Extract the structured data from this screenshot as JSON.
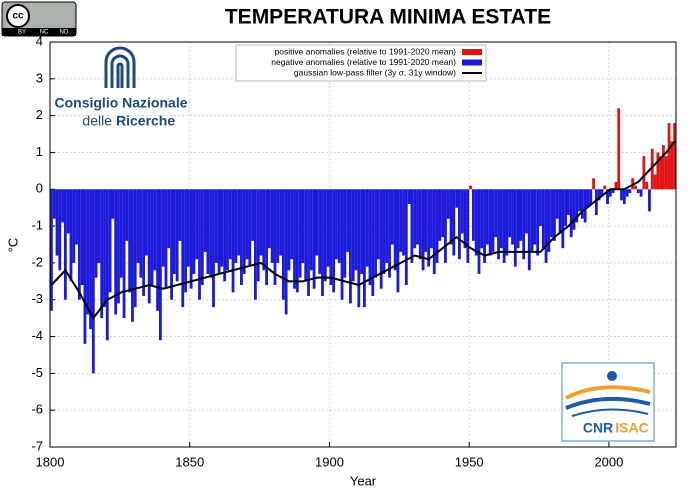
{
  "chart_data": {
    "type": "bar",
    "title": "TEMPERATURA MINIMA ESTATE",
    "xlabel": "Year",
    "ylabel": "°C",
    "xlim": [
      1800,
      2024
    ],
    "ylim": [
      -7,
      4
    ],
    "xticks": [
      1800,
      1850,
      1900,
      1950,
      2000
    ],
    "yticks": [
      -7,
      -6,
      -5,
      -4,
      -3,
      -2,
      -1,
      0,
      1,
      2,
      3,
      4
    ],
    "grid": true,
    "legend": "top-right",
    "series": [
      {
        "name": "positive anomalies (relative to 1991-2020 mean)",
        "color": "#e01414",
        "sign": "positive"
      },
      {
        "name": "negative anomalies (relative to 1991-2020 mean)",
        "color": "#1a1ad8",
        "sign": "negative"
      }
    ],
    "x": [
      1800,
      1801,
      1802,
      1803,
      1804,
      1805,
      1806,
      1807,
      1808,
      1809,
      1810,
      1811,
      1812,
      1813,
      1814,
      1815,
      1816,
      1817,
      1818,
      1819,
      1820,
      1821,
      1822,
      1823,
      1824,
      1825,
      1826,
      1827,
      1828,
      1829,
      1830,
      1831,
      1832,
      1833,
      1834,
      1835,
      1836,
      1837,
      1838,
      1839,
      1840,
      1841,
      1842,
      1843,
      1844,
      1845,
      1846,
      1847,
      1848,
      1849,
      1850,
      1851,
      1852,
      1853,
      1854,
      1855,
      1856,
      1857,
      1858,
      1859,
      1860,
      1861,
      1862,
      1863,
      1864,
      1865,
      1866,
      1867,
      1868,
      1869,
      1870,
      1871,
      1872,
      1873,
      1874,
      1875,
      1876,
      1877,
      1878,
      1879,
      1880,
      1881,
      1882,
      1883,
      1884,
      1885,
      1886,
      1887,
      1888,
      1889,
      1890,
      1891,
      1892,
      1893,
      1894,
      1895,
      1896,
      1897,
      1898,
      1899,
      1900,
      1901,
      1902,
      1903,
      1904,
      1905,
      1906,
      1907,
      1908,
      1909,
      1910,
      1911,
      1912,
      1913,
      1914,
      1915,
      1916,
      1917,
      1918,
      1919,
      1920,
      1921,
      1922,
      1923,
      1924,
      1925,
      1926,
      1927,
      1928,
      1929,
      1930,
      1931,
      1932,
      1933,
      1934,
      1935,
      1936,
      1937,
      1938,
      1939,
      1940,
      1941,
      1942,
      1943,
      1944,
      1945,
      1946,
      1947,
      1948,
      1949,
      1950,
      1951,
      1952,
      1953,
      1954,
      1955,
      1956,
      1957,
      1958,
      1959,
      1960,
      1961,
      1962,
      1963,
      1964,
      1965,
      1966,
      1967,
      1968,
      1969,
      1970,
      1971,
      1972,
      1973,
      1974,
      1975,
      1976,
      1977,
      1978,
      1979,
      1980,
      1981,
      1982,
      1983,
      1984,
      1985,
      1986,
      1987,
      1988,
      1989,
      1990,
      1991,
      1992,
      1993,
      1994,
      1995,
      1996,
      1997,
      1998,
      1999,
      2000,
      2001,
      2002,
      2003,
      2004,
      2005,
      2006,
      2007,
      2008,
      2009,
      2010,
      2011,
      2012,
      2013,
      2014,
      2015,
      2016,
      2017,
      2018,
      2019,
      2020,
      2021,
      2022,
      2023
    ],
    "values": [
      -3.3,
      -0.8,
      -1.8,
      -2.2,
      -0.9,
      -3.0,
      -1.2,
      -2.5,
      -2.0,
      -1.5,
      -3.0,
      -2.6,
      -4.2,
      -3.4,
      -3.8,
      -5.0,
      -2.4,
      -2.0,
      -3.5,
      -3.2,
      -4.1,
      -2.8,
      -0.8,
      -3.4,
      -3.1,
      -2.4,
      -3.5,
      -1.4,
      -2.8,
      -3.6,
      -3.2,
      -2.0,
      -2.4,
      -2.9,
      -1.8,
      -3.1,
      -2.6,
      -2.2,
      -3.3,
      -4.1,
      -2.1,
      -2.7,
      -1.6,
      -3.0,
      -2.3,
      -2.5,
      -1.4,
      -3.2,
      -2.8,
      -2.1,
      -2.7,
      -2.3,
      -1.9,
      -3.0,
      -2.6,
      -1.7,
      -2.3,
      -2.4,
      -3.2,
      -2.0,
      -2.3,
      -2.1,
      -2.5,
      -2.2,
      -1.9,
      -2.8,
      -2.0,
      -1.8,
      -2.6,
      -2.3,
      -1.9,
      -2.1,
      -1.4,
      -3.0,
      -2.5,
      -1.8,
      -2.2,
      -2.6,
      -1.6,
      -2.0,
      -2.6,
      -2.0,
      -1.8,
      -3.0,
      -3.4,
      -2.2,
      -1.9,
      -2.7,
      -2.8,
      -2.4,
      -2.0,
      -2.5,
      -2.9,
      -2.2,
      -2.7,
      -1.8,
      -2.3,
      -2.9,
      -2.5,
      -2.1,
      -2.6,
      -2.8,
      -1.9,
      -2.0,
      -3.0,
      -2.4,
      -1.7,
      -3.1,
      -2.5,
      -2.2,
      -3.2,
      -2.3,
      -3.2,
      -2.1,
      -2.6,
      -2.9,
      -2.4,
      -1.9,
      -2.7,
      -2.3,
      -2.0,
      -2.4,
      -1.5,
      -2.2,
      -2.8,
      -1.7,
      -1.8,
      -2.6,
      -0.4,
      -2.0,
      -1.6,
      -1.5,
      -1.9,
      -2.2,
      -1.7,
      -2.1,
      -1.6,
      -2.3,
      -2.0,
      -1.4,
      -1.3,
      -2.0,
      -0.8,
      -1.5,
      -1.8,
      -0.5,
      -1.9,
      -1.2,
      -1.6,
      -2.0,
      0.1,
      -1.4,
      -1.8,
      -2.3,
      -1.6,
      -2.0,
      -1.5,
      -1.8,
      -1.7,
      -1.3,
      -1.9,
      -1.6,
      -2.0,
      -1.8,
      -1.3,
      -1.5,
      -2.1,
      -1.6,
      -1.4,
      -1.9,
      -1.2,
      -2.2,
      -1.7,
      -1.5,
      -1.8,
      -1.0,
      -1.6,
      -2.0,
      -1.7,
      -1.3,
      -1.4,
      -0.8,
      -1.2,
      -1.6,
      -1.0,
      -0.7,
      -1.3,
      -1.1,
      -0.9,
      -0.6,
      -0.8,
      -0.9,
      -0.5,
      -0.4,
      0.3,
      -0.7,
      -0.3,
      -0.2,
      0.1,
      -0.4,
      -0.2,
      -0.1,
      0.2,
      2.2,
      -0.3,
      -0.4,
      -0.2,
      -0.1,
      0.3,
      0.1,
      -0.1,
      -0.2,
      0.9,
      0.2,
      -0.6,
      1.1,
      0.4,
      1.0,
      0.9,
      1.2,
      0.9,
      1.8,
      1.3,
      1.8
    ],
    "smooth": {
      "name": "gaussian low-pass filter (3y σ, 31y window)",
      "color": "#000000",
      "x": [
        1800,
        1805,
        1810,
        1815,
        1820,
        1825,
        1830,
        1835,
        1840,
        1845,
        1850,
        1855,
        1860,
        1865,
        1870,
        1875,
        1880,
        1885,
        1890,
        1895,
        1900,
        1905,
        1910,
        1915,
        1920,
        1925,
        1930,
        1935,
        1940,
        1945,
        1950,
        1955,
        1960,
        1965,
        1970,
        1975,
        1980,
        1985,
        1990,
        1995,
        2000,
        2005,
        2010,
        2015,
        2020,
        2023
      ],
      "values": [
        -2.6,
        -2.2,
        -2.8,
        -3.5,
        -3.0,
        -2.8,
        -2.7,
        -2.6,
        -2.7,
        -2.6,
        -2.5,
        -2.4,
        -2.3,
        -2.2,
        -2.1,
        -2.0,
        -2.3,
        -2.5,
        -2.5,
        -2.4,
        -2.4,
        -2.5,
        -2.6,
        -2.4,
        -2.2,
        -2.0,
        -1.8,
        -1.9,
        -1.6,
        -1.3,
        -1.6,
        -1.8,
        -1.7,
        -1.7,
        -1.7,
        -1.7,
        -1.3,
        -1.0,
        -0.6,
        -0.3,
        0.0,
        0.0,
        0.2,
        0.6,
        1.0,
        1.3
      ]
    }
  },
  "logos": {
    "cc": [
      "cc",
      "BY",
      "NC",
      "ND"
    ],
    "cnr": [
      "Consiglio Nazionale",
      "delle",
      "Ricerche"
    ],
    "isac": [
      "CNR",
      "ISAC"
    ]
  }
}
